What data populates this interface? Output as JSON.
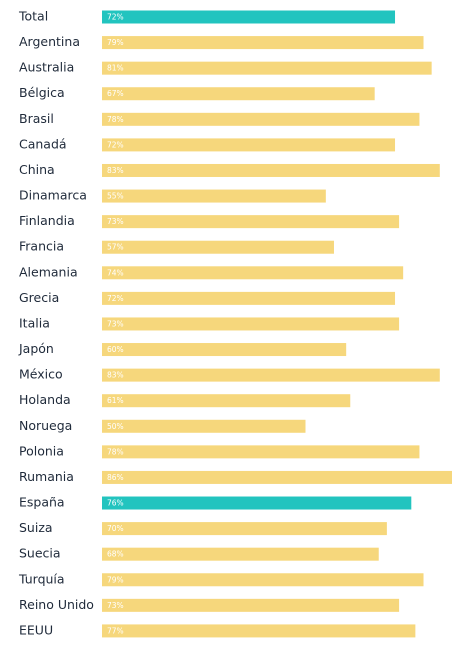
{
  "chart_data": {
    "type": "bar",
    "orientation": "horizontal",
    "categories": [
      "Total",
      "Argentina",
      "Australia",
      "Bélgica",
      "Brasil",
      "Canadá",
      "China",
      "Dinamarca",
      "Finlandia",
      "Francia",
      "Alemania",
      "Grecia",
      "Italia",
      "Japón",
      "México",
      "Holanda",
      "Noruega",
      "Polonia",
      "Rumania",
      "España",
      "Suiza",
      "Suecia",
      "Turquía",
      "Reino Unido",
      "EEUU"
    ],
    "values": [
      72,
      79,
      81,
      67,
      78,
      72,
      83,
      55,
      73,
      57,
      74,
      72,
      73,
      60,
      83,
      61,
      50,
      78,
      86,
      76,
      70,
      68,
      79,
      73,
      77
    ],
    "value_labels": [
      "72%",
      "79%",
      "81%",
      "67%",
      "78%",
      "72%",
      "83%",
      "55%",
      "73%",
      "57%",
      "74%",
      "72%",
      "73%",
      "60%",
      "83%",
      "61%",
      "50%",
      "78%",
      "86%",
      "76%",
      "70%",
      "68%",
      "79%",
      "73%",
      "77%"
    ],
    "colors": [
      "#22c4bf",
      "#f6d77c",
      "#f6d77c",
      "#f6d77c",
      "#f6d77c",
      "#f6d77c",
      "#f6d77c",
      "#f6d77c",
      "#f6d77c",
      "#f6d77c",
      "#f6d77c",
      "#f6d77c",
      "#f6d77c",
      "#f6d77c",
      "#f6d77c",
      "#f6d77c",
      "#f6d77c",
      "#f6d77c",
      "#f6d77c",
      "#22c4bf",
      "#f6d77c",
      "#f6d77c",
      "#f6d77c",
      "#f6d77c",
      "#f6d77c"
    ]
  }
}
